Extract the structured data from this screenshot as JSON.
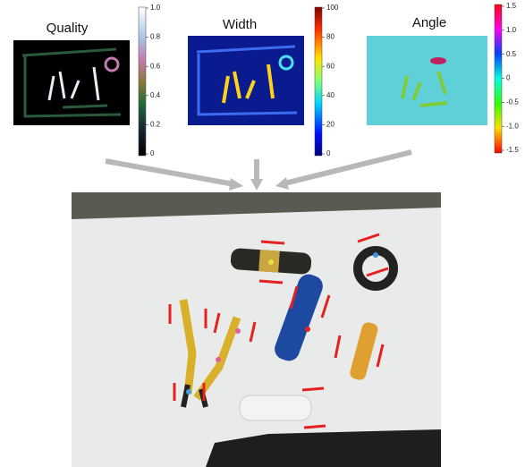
{
  "panels": [
    {
      "title": "Quality",
      "colorbar_ticks": [
        "0",
        "0.2",
        "0.4",
        "0.6",
        "0.8",
        "1.0"
      ]
    },
    {
      "title": "Width",
      "colorbar_ticks": [
        "0",
        "20",
        "40",
        "60",
        "80",
        "100"
      ]
    },
    {
      "title": "Angle",
      "colorbar_ticks": [
        "-1.5",
        "-1.0",
        "-0.5",
        "0",
        "0.5",
        "1.0",
        "1.5"
      ]
    }
  ]
}
